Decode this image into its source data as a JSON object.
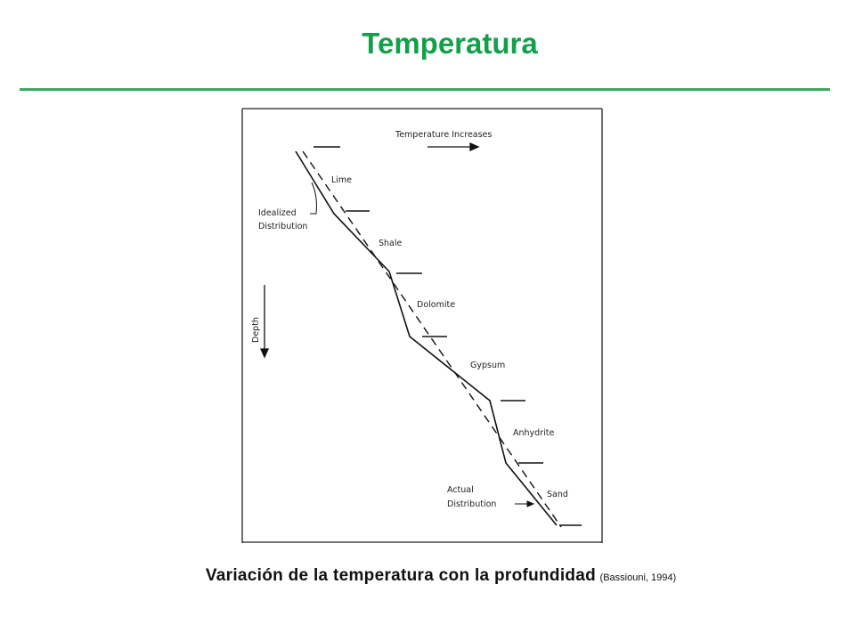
{
  "header": {
    "title": "Temperatura"
  },
  "diagram": {
    "temperature_label": "Temperature Increases",
    "depth_label": "Depth",
    "idealized_label": [
      "Idealized",
      "Distribution"
    ],
    "actual_label": [
      "Actual",
      "Distribution"
    ],
    "layers": [
      "Lime",
      "Shale",
      "Dolomite",
      "Gypsum",
      "Anhydrite",
      "Sand"
    ]
  },
  "caption": {
    "text": "Variación de la temperatura con la profundidad",
    "source": "(Bassiouni, 1994)"
  }
}
